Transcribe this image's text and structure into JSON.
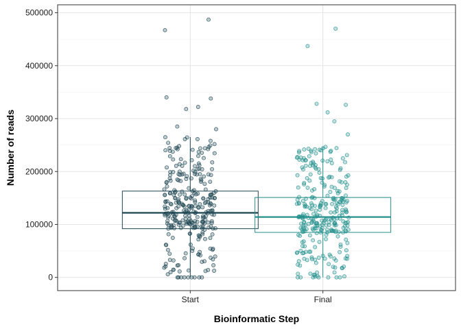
{
  "chart_data": {
    "type": "box",
    "title": "",
    "xlabel": "Bioinformatic Step",
    "ylabel": "Number of reads",
    "categories": [
      "Start",
      "Final"
    ],
    "ylim": [
      -25000,
      515000
    ],
    "yticks": [
      0,
      100000,
      200000,
      300000,
      400000,
      500000
    ],
    "ytick_labels": [
      "0",
      "100000",
      "200000",
      "300000",
      "400000",
      "500000"
    ],
    "grid": true,
    "legend": "none",
    "colors": {
      "Start": "#1b4350",
      "Final": "#23908c"
    },
    "boxes": [
      {
        "name": "Start",
        "q1": 92000,
        "median": 122000,
        "q3": 163000,
        "whisker_low": 0,
        "whisker_high": 265000,
        "n_points": 300,
        "extreme_points": [
          487000,
          467000,
          340000,
          338000,
          322000,
          318000,
          285000,
          280000
        ]
      },
      {
        "name": "Final",
        "q1": 85000,
        "median": 114000,
        "q3": 151000,
        "whisker_low": 0,
        "whisker_high": 247000,
        "n_points": 300,
        "extreme_points": [
          470000,
          437000,
          328000,
          326000,
          312000,
          295000,
          270000
        ]
      }
    ]
  }
}
